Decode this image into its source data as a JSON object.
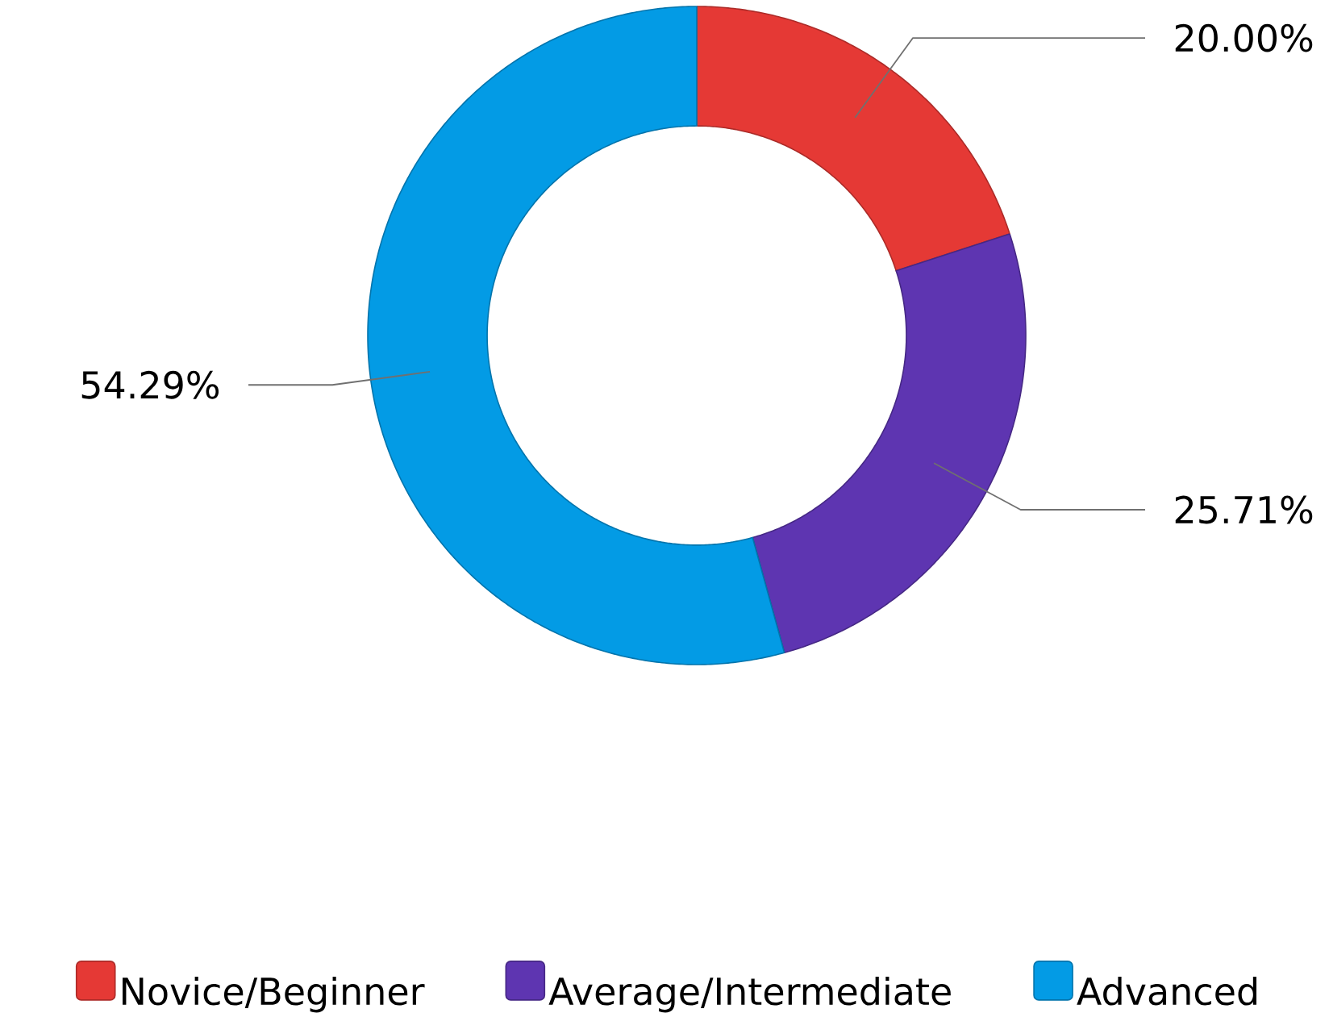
{
  "chart_data": {
    "type": "donut",
    "categories": [
      "Novice/Beginner",
      "Average/Intermediate",
      "Advanced"
    ],
    "values": [
      20.0,
      25.71,
      54.29
    ],
    "colors": [
      "#e53935",
      "#5e35b1",
      "#039be5"
    ],
    "value_labels": [
      "20.00%",
      "25.71%",
      "54.29%"
    ],
    "legend": "bottom"
  }
}
